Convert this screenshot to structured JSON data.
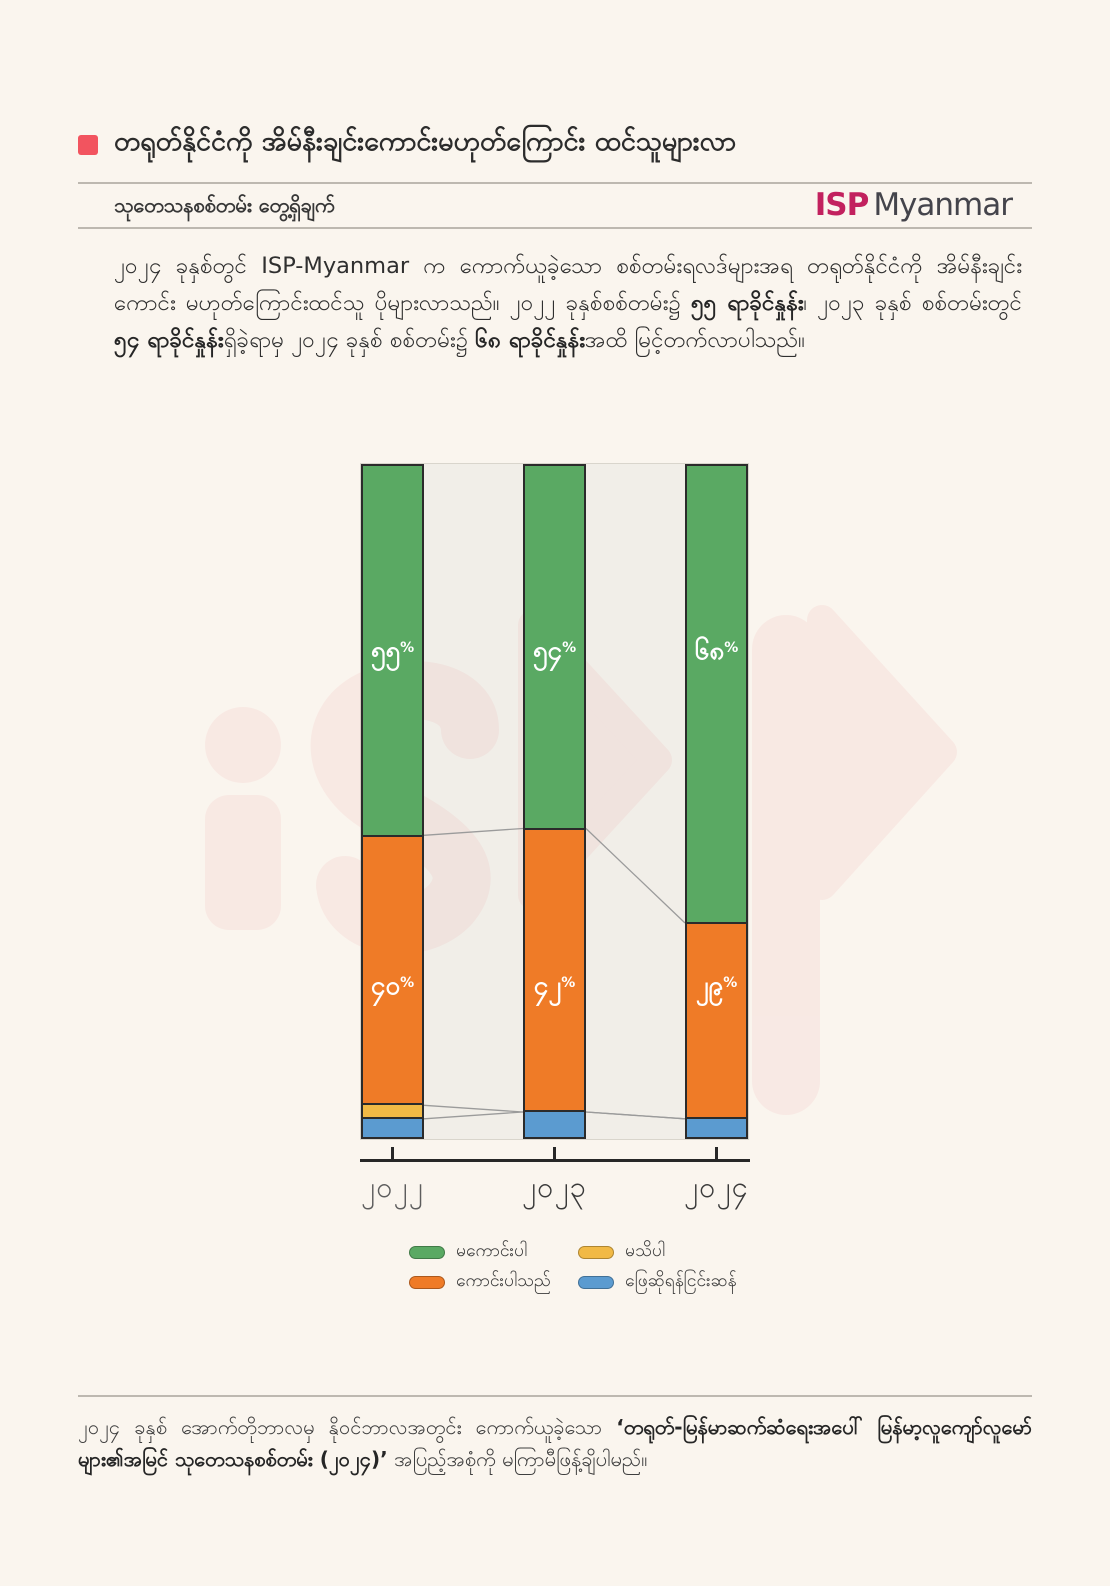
{
  "page": {
    "background": "#faf5ee"
  },
  "header": {
    "bullet_color": "#f2545f",
    "title": "တရုတ်နိုင်ငံကို အိမ်နီးချင်းကောင်းမဟုတ်ကြောင်း ထင်သူများလာ",
    "subtitle": "သုတေသနစစ်တမ်း တွေ့ရှိချက်",
    "logo_isp": "ISP",
    "logo_myanmar": "Myanmar",
    "logo_isp_color": "#c2215e"
  },
  "intro": {
    "segments": [
      {
        "text": "၂၀၂၄ ခုနှစ်တွင် ISP-Myanmar က ကောက်ယူခဲ့သော စစ်တမ်းရလဒ်များအရ တရုတ်နိုင်ငံကို အိမ်နီးချင်းကောင်း မဟုတ်ကြောင်းထင်သူ ပိုများလာသည်။ ၂၀၂၂ ခုနှစ်စစ်တမ်း၌ ",
        "bold": false
      },
      {
        "text": "၅၅ ရာခိုင်နှုန်း",
        "bold": true
      },
      {
        "text": "၊ ၂၀၂၃ ခုနှစ် စစ်တမ်းတွင် ",
        "bold": false
      },
      {
        "text": "၅၄ ရာခိုင်နှုန်း",
        "bold": true
      },
      {
        "text": "ရှိခဲ့ရာမှ ၂၀၂၄ ခုနှစ် စစ်တမ်း၌ ",
        "bold": false
      },
      {
        "text": "၆၈ ရာခိုင်နှုန်း",
        "bold": true
      },
      {
        "text": "အထိ မြင့်တက်လာပါသည်။",
        "bold": false
      }
    ]
  },
  "chart_data": {
    "type": "bar",
    "stacked": true,
    "unit": "%",
    "ylim": [
      0,
      100
    ],
    "grid": false,
    "legend_position": "bottom",
    "categories": [
      "၂၀၂၂",
      "၂၀၂၃",
      "၂၀၂၄"
    ],
    "category_label_colors": [
      "#5d5d5d",
      "#3a3a3a",
      "#3a3a3a"
    ],
    "series": [
      {
        "name": "မကောင်းပါ",
        "color": "#5aa963",
        "values": [
          55,
          54,
          68
        ],
        "value_labels": [
          "၅၅",
          "၅၄",
          "၆၈"
        ]
      },
      {
        "name": "ကောင်းပါသည်",
        "color": "#ef7b27",
        "values": [
          40,
          42,
          29
        ],
        "value_labels": [
          "၄၀",
          "၄၂",
          "၂၉"
        ]
      },
      {
        "name": "မသိပါ",
        "color": "#f1b945",
        "values": [
          2,
          0,
          0
        ],
        "value_labels": [
          "",
          "",
          ""
        ]
      },
      {
        "name": "ဖြေဆိုရန်ငြင်းဆန်",
        "color": "#5b9bd0",
        "values": [
          3,
          4,
          3
        ],
        "value_labels": [
          "",
          "",
          ""
        ]
      }
    ],
    "percent_sign": "%",
    "connector_color": "#9b9b9b",
    "bar_border_color": "#2b2b2b"
  },
  "footer": {
    "segments": [
      {
        "text": "၂၀၂၄ ခုနှစ် အောက်တိုဘာလမှ နိုဝင်ဘာလအတွင်း ကောက်ယူခဲ့သော ",
        "bold": false
      },
      {
        "text": "‘တရုတ်-မြန်မာဆက်ဆံရေးအပေါ် မြန်မာ့လူကျော်လူမော်များ၏အမြင် သုတေသနစစ်တမ်း (၂၀၂၄)’",
        "bold": true
      },
      {
        "text": " အပြည့်အစုံကို မကြာမီဖြန့်ချိပါမည်။",
        "bold": false
      }
    ]
  }
}
